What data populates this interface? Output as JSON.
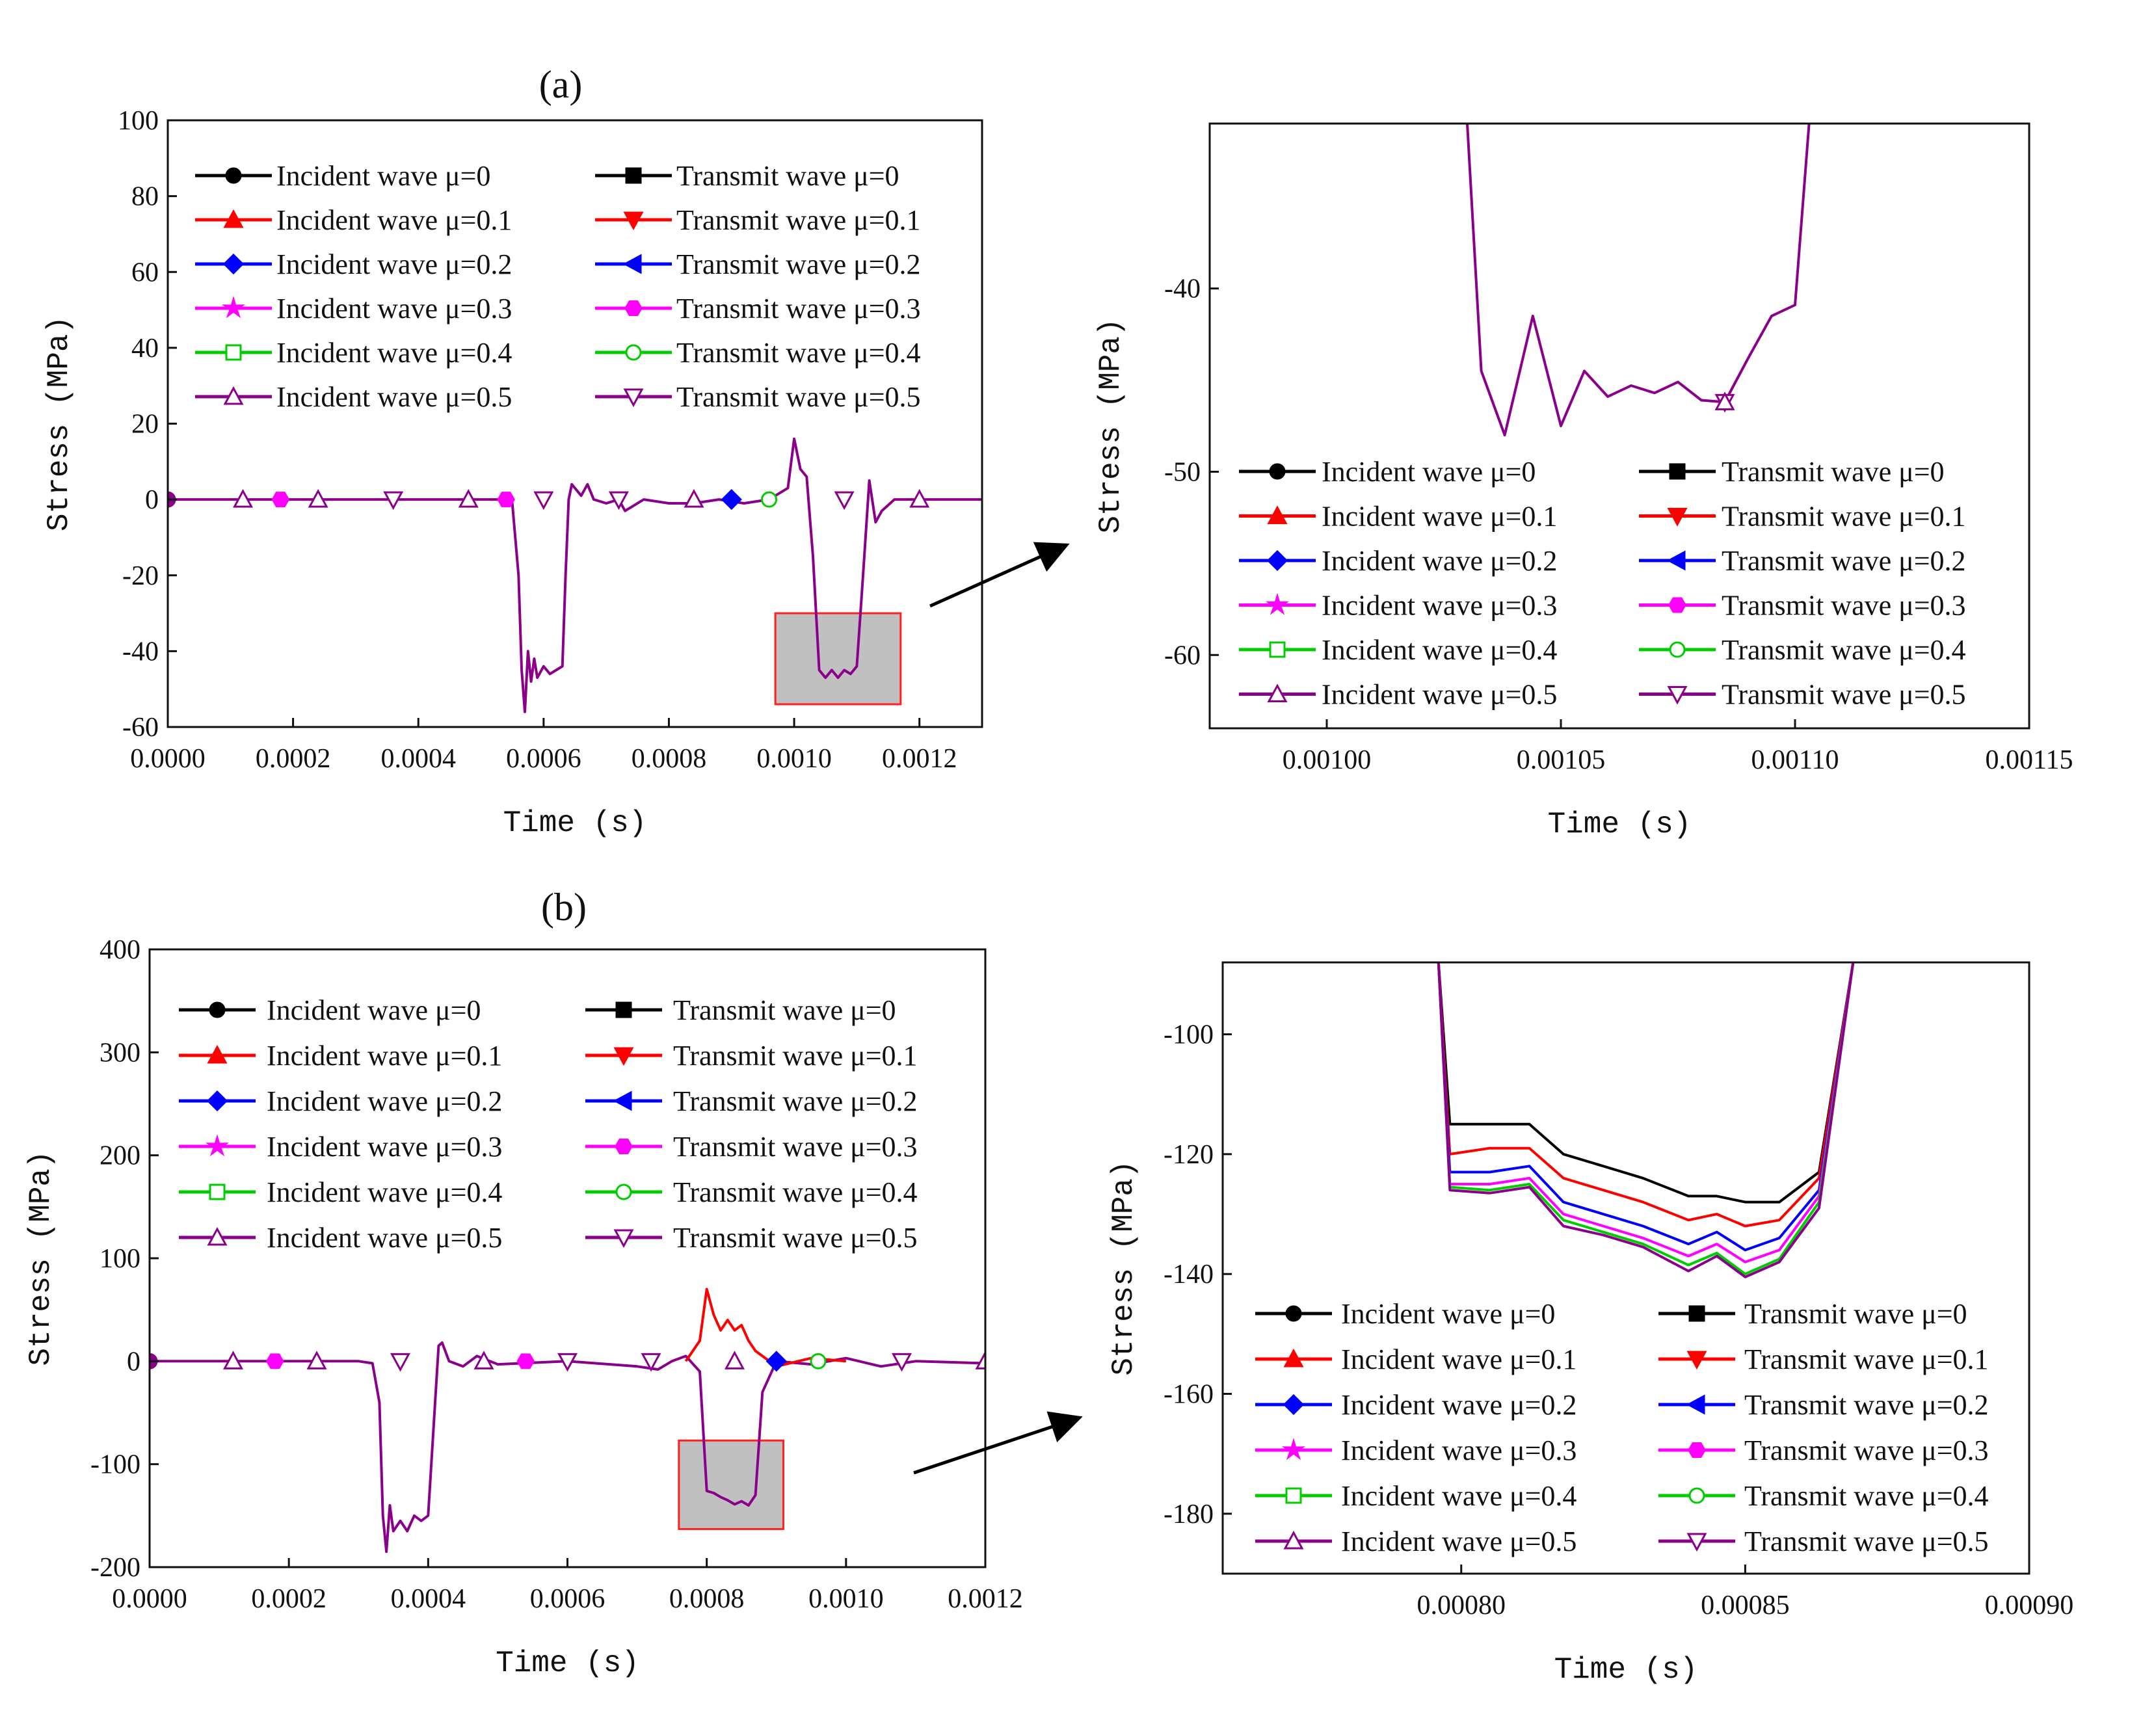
{
  "figure": {
    "legend_entries": [
      {
        "label": "Incident wave μ=0",
        "color": "#000000",
        "marker": "circle"
      },
      {
        "label": "Transmit wave μ=0",
        "color": "#000000",
        "marker": "square"
      },
      {
        "label": "Incident wave μ=0.1",
        "color": "#ff0000",
        "marker": "tri-up"
      },
      {
        "label": "Transmit wave μ=0.1",
        "color": "#ff0000",
        "marker": "tri-down"
      },
      {
        "label": "Incident wave μ=0.2",
        "color": "#0000ff",
        "marker": "diamond"
      },
      {
        "label": "Transmit wave μ=0.2",
        "color": "#0000ff",
        "marker": "tri-left"
      },
      {
        "label": "Incident wave μ=0.3",
        "color": "#ff00ff",
        "marker": "star"
      },
      {
        "label": "Transmit wave μ=0.3",
        "color": "#ff00ff",
        "marker": "hexagon"
      },
      {
        "label": "Incident wave μ=0.4",
        "color": "#00cc00",
        "marker": "open-square"
      },
      {
        "label": "Transmit wave μ=0.4",
        "color": "#00cc00",
        "marker": "open-circle"
      },
      {
        "label": "Incident wave μ=0.5",
        "color": "#8b008b",
        "marker": "open-tri-up"
      },
      {
        "label": "Transmit wave μ=0.5",
        "color": "#8b008b",
        "marker": "open-tri-down"
      }
    ]
  },
  "chart_data": [
    {
      "id": "a-main",
      "type": "line",
      "panel_label": "(a)",
      "xlabel": "Time (s)",
      "ylabel": "Stress (MPa)",
      "xlim": [
        0,
        0.0013
      ],
      "ylim": [
        -60,
        100
      ],
      "xticks": [
        "0.0000",
        "0.0002",
        "0.0004",
        "0.0006",
        "0.0008",
        "0.0010",
        "0.0012"
      ],
      "xtick_values": [
        0,
        0.0002,
        0.0004,
        0.0006,
        0.0008,
        0.001,
        0.0012
      ],
      "yticks": [
        "-60",
        "-40",
        "-20",
        "0",
        "20",
        "40",
        "60",
        "80",
        "100"
      ],
      "ytick_values": [
        -60,
        -40,
        -20,
        0,
        20,
        40,
        60,
        80,
        100
      ],
      "highlight_box": {
        "x": [
          0.00097,
          0.00117
        ],
        "y": [
          -54,
          -30
        ]
      },
      "series": [
        {
          "name": "Incident/Transmit wave μ=0.5",
          "color": "#8b008b",
          "x": [
            0,
            0.0005,
            0.00054,
            0.00055,
            0.00056,
            0.000565,
            0.00057,
            0.000575,
            0.00058,
            0.000585,
            0.00059,
            0.0006,
            0.00061,
            0.00062,
            0.00063,
            0.000635,
            0.00064,
            0.000645,
            0.00065,
            0.00066,
            0.00067,
            0.00068,
            0.0007,
            0.00072,
            0.00073,
            0.00074,
            0.00076,
            0.0008,
            0.00084,
            0.00088,
            0.00092,
            0.00096,
            0.00099,
            0.001,
            0.00101,
            0.00102,
            0.00103,
            0.00104,
            0.00105,
            0.00106,
            0.00107,
            0.00108,
            0.00109,
            0.0011,
            0.00111,
            0.00112,
            0.00113,
            0.00114,
            0.00116,
            0.0012,
            0.0013
          ],
          "y": [
            0,
            0,
            0,
            -1,
            -20,
            -45,
            -56,
            -40,
            -48,
            -42,
            -47,
            -44,
            -46,
            -45,
            -44,
            -20,
            0,
            4,
            3,
            1,
            4,
            0,
            -1,
            0,
            -3,
            -2,
            0,
            -1,
            -1,
            0,
            -1,
            0,
            3,
            16,
            8,
            6,
            -15,
            -45,
            -47,
            -45,
            -47,
            -45,
            -46,
            -44,
            -20,
            5,
            -6,
            -3,
            0,
            0,
            0
          ]
        }
      ]
    },
    {
      "id": "a-zoom",
      "type": "line",
      "xlabel": "Time (s)",
      "ylabel": "Stress (MPa)",
      "xlim": [
        0.000975,
        0.00115
      ],
      "ylim": [
        -64,
        -31
      ],
      "xticks": [
        "0.00100",
        "0.00105",
        "0.00110",
        "0.00115"
      ],
      "xtick_values": [
        0.001,
        0.00105,
        0.0011,
        0.00115
      ],
      "yticks": [
        "-60",
        "-50",
        "-40"
      ],
      "ytick_values": [
        -60,
        -50,
        -40
      ],
      "series": [
        {
          "name": "μ=0.5",
          "color": "#8b008b",
          "x": [
            0.00103,
            0.001033,
            0.001038,
            0.001044,
            0.00105,
            0.001055,
            0.00106,
            0.001065,
            0.00107,
            0.001075,
            0.00108,
            0.001085,
            0.00109,
            0.001095,
            0.0011,
            0.001103
          ],
          "y": [
            -31,
            -44.5,
            -48,
            -41.5,
            -47.5,
            -44.5,
            -45.9,
            -45.3,
            -45.7,
            -45.1,
            -46.1,
            -46.2,
            -43.8,
            -41.5,
            -40.9,
            -31
          ]
        }
      ]
    },
    {
      "id": "b-main",
      "type": "line",
      "panel_label": "(b)",
      "xlabel": "Time (s)",
      "ylabel": "Stress (MPa)",
      "xlim": [
        0,
        0.0012
      ],
      "ylim": [
        -200,
        400
      ],
      "xticks": [
        "0.0000",
        "0.0002",
        "0.0004",
        "0.0006",
        "0.0008",
        "0.0010",
        "0.0012"
      ],
      "xtick_values": [
        0,
        0.0002,
        0.0004,
        0.0006,
        0.0008,
        0.001,
        0.0012
      ],
      "yticks": [
        "-200",
        "-100",
        "0",
        "100",
        "200",
        "300",
        "400"
      ],
      "ytick_values": [
        -200,
        -100,
        0,
        100,
        200,
        300,
        400
      ],
      "highlight_box": {
        "x": [
          0.00076,
          0.00091
        ],
        "y": [
          -163,
          -77
        ]
      },
      "series": [
        {
          "name": "μ=0.5",
          "color": "#8b008b",
          "x": [
            0,
            0.0003,
            0.00032,
            0.00033,
            0.000335,
            0.00034,
            0.000345,
            0.00035,
            0.00036,
            0.00037,
            0.00038,
            0.00039,
            0.0004,
            0.00041,
            0.000415,
            0.00042,
            0.00043,
            0.00045,
            0.00047,
            0.0005,
            0.0006,
            0.0007,
            0.00073,
            0.00075,
            0.00077,
            0.00079,
            0.0008,
            0.00081,
            0.00082,
            0.00083,
            0.00084,
            0.00085,
            0.00086,
            0.00087,
            0.00088,
            0.0009,
            0.00095,
            0.001,
            0.00105,
            0.0011,
            0.0012
          ],
          "y": [
            0,
            0,
            -2,
            -40,
            -150,
            -185,
            -140,
            -165,
            -155,
            -165,
            -150,
            -155,
            -150,
            -40,
            15,
            18,
            0,
            -5,
            5,
            -3,
            0,
            -5,
            -8,
            0,
            5,
            -10,
            -126,
            -128,
            -132,
            -135,
            -139,
            -136,
            -140,
            -130,
            -30,
            0,
            -3,
            3,
            -5,
            0,
            -2
          ]
        },
        {
          "name": "Transmit waves",
          "color": "#ff0000",
          "x": [
            0.00077,
            0.00079,
            0.0008,
            0.00081,
            0.00082,
            0.00083,
            0.00084,
            0.00085,
            0.00086,
            0.00087,
            0.00088,
            0.0009,
            0.00095,
            0.001
          ],
          "y": [
            0,
            20,
            70,
            45,
            30,
            40,
            30,
            35,
            20,
            10,
            5,
            -5,
            3,
            0
          ]
        }
      ]
    },
    {
      "id": "b-zoom",
      "type": "line",
      "xlabel": "Time (s)",
      "ylabel": "Stress (MPa)",
      "xlim": [
        0.000758,
        0.0009
      ],
      "ylim": [
        -190,
        -88
      ],
      "xticks": [
        "0.00080",
        "0.00085",
        "0.00090"
      ],
      "xtick_values": [
        0.0008,
        0.00085,
        0.0009
      ],
      "yticks": [
        "-180",
        "-160",
        "-140",
        "-120",
        "-100"
      ],
      "ytick_values": [
        -180,
        -160,
        -140,
        -120,
        -100
      ],
      "series_x": [
        0.000796,
        0.000798,
        0.000805,
        0.000812,
        0.000818,
        0.000825,
        0.000832,
        0.00084,
        0.000845,
        0.00085,
        0.000856,
        0.000863,
        0.000869
      ],
      "series": [
        {
          "name": "μ=0",
          "color": "#000000",
          "y": [
            -88,
            -115,
            -115,
            -115,
            -120,
            -122,
            -124,
            -127,
            -127,
            -128,
            -128,
            -123,
            -88
          ]
        },
        {
          "name": "μ=0.1",
          "color": "#ff0000",
          "y": [
            -88,
            -120,
            -119,
            -119,
            -124,
            -126,
            -128,
            -131,
            -130,
            -132,
            -131,
            -124,
            -88
          ]
        },
        {
          "name": "μ=0.2",
          "color": "#0000ff",
          "y": [
            -88,
            -123,
            -123,
            -122,
            -128,
            -130,
            -132,
            -135,
            -133,
            -136,
            -134,
            -126,
            -88
          ]
        },
        {
          "name": "μ=0.3",
          "color": "#ff00ff",
          "y": [
            -88,
            -125,
            -125,
            -124,
            -130,
            -132,
            -134,
            -137,
            -135,
            -138,
            -136,
            -127,
            -88
          ]
        },
        {
          "name": "μ=0.4",
          "color": "#00cc00",
          "y": [
            -88,
            -125.5,
            -126,
            -125,
            -131,
            -133,
            -135,
            -138.5,
            -136.5,
            -140,
            -137.5,
            -128,
            -88
          ]
        },
        {
          "name": "μ=0.5",
          "color": "#8b008b",
          "y": [
            -88,
            -126,
            -126.5,
            -125.5,
            -132,
            -133.5,
            -135.5,
            -139.5,
            -137,
            -140.5,
            -138,
            -129,
            -88
          ]
        }
      ]
    }
  ]
}
